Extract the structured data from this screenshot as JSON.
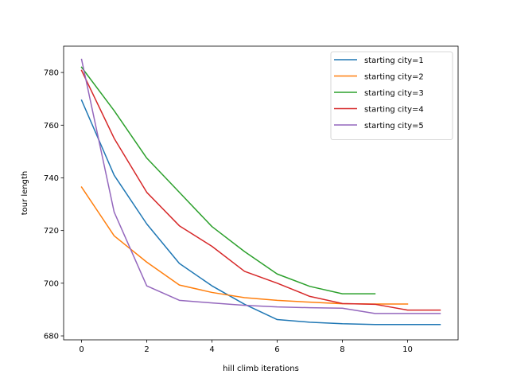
{
  "chart_data": {
    "type": "line",
    "title": "",
    "xlabel": "hill climb iterations",
    "ylabel": "tour length",
    "xlim": [
      -0.55,
      11.55
    ],
    "ylim": [
      678.5,
      790
    ],
    "xticks": [
      0,
      2,
      4,
      6,
      8,
      10
    ],
    "yticks": [
      680,
      700,
      720,
      740,
      760,
      780
    ],
    "grid": false,
    "legend_position": "top-right",
    "series": [
      {
        "name": "starting city=1",
        "color": "#1f77b4",
        "x": [
          0,
          1,
          2,
          3,
          4,
          5,
          6,
          7,
          8,
          9,
          10,
          11
        ],
        "y": [
          769.5,
          741,
          722.5,
          707.5,
          699,
          692,
          686.2,
          685.2,
          684.6,
          684.3,
          684.3,
          684.3
        ]
      },
      {
        "name": "starting city=2",
        "color": "#ff7f0e",
        "x": [
          0,
          1,
          2,
          3,
          4,
          5,
          6,
          7,
          8,
          9,
          10
        ],
        "y": [
          736.5,
          718,
          708,
          699.3,
          696.5,
          694.5,
          693.5,
          692.8,
          692.2,
          692.1,
          692.1
        ]
      },
      {
        "name": "starting city=3",
        "color": "#2ca02c",
        "x": [
          0,
          1,
          2,
          3,
          4,
          5,
          6,
          7,
          8,
          9
        ],
        "y": [
          782,
          765.5,
          747.5,
          734.5,
          721.5,
          712,
          703.5,
          698.8,
          696,
          696
        ]
      },
      {
        "name": "starting city=4",
        "color": "#d62728",
        "x": [
          0,
          1,
          2,
          3,
          4,
          5,
          6,
          7,
          8,
          9,
          10,
          11
        ],
        "y": [
          780.8,
          755,
          734.5,
          721.8,
          714,
          704.5,
          700,
          695,
          692.3,
          692,
          689.8,
          689.8
        ]
      },
      {
        "name": "starting city=5",
        "color": "#9467bd",
        "x": [
          0,
          1,
          2,
          3,
          4,
          5,
          6,
          7,
          8,
          9,
          10,
          11
        ],
        "y": [
          785,
          727,
          699,
          693.5,
          692.5,
          691.6,
          691,
          690.7,
          690.5,
          688.5,
          688.5,
          688.5
        ]
      }
    ]
  }
}
